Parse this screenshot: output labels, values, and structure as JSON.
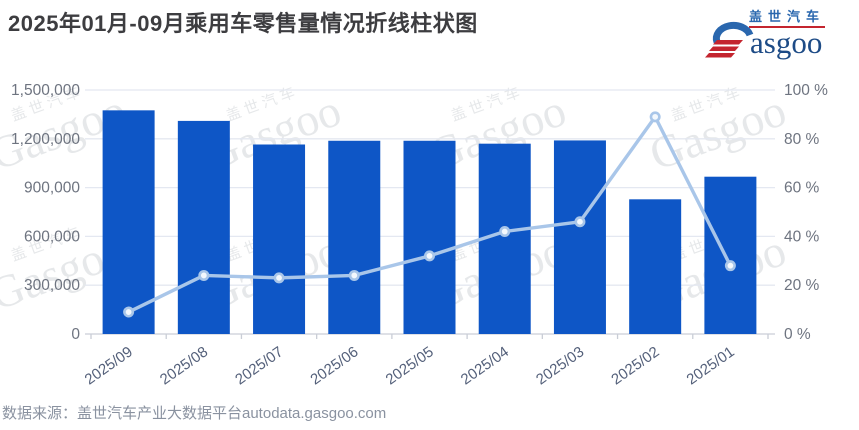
{
  "title": "2025年01月-09月乘用车零售量情况折线柱状图",
  "logo": {
    "cn": "盖世汽车",
    "en": "Gasgoo"
  },
  "watermark": {
    "cn": "盖世汽车",
    "en": "Gasgoo"
  },
  "footer": {
    "source": "数据来源：盖世汽车产业大数据平台autodata.gasgoo.com"
  },
  "chart_data": {
    "type": "bar+line",
    "title": "2025年01月-09月乘用车零售量情况折线柱状图",
    "categories": [
      "2025/09",
      "2025/08",
      "2025/07",
      "2025/06",
      "2025/05",
      "2025/04",
      "2025/03",
      "2025/02",
      "2025/01"
    ],
    "series": [
      {
        "name": "bar",
        "type": "bar",
        "yaxis": "left",
        "values": [
          1375000,
          1310000,
          1165000,
          1188000,
          1188000,
          1170000,
          1190000,
          828000,
          967000
        ]
      },
      {
        "name": "line",
        "type": "line",
        "yaxis": "right",
        "values": [
          9,
          24,
          23,
          24,
          32,
          42,
          46,
          89,
          28
        ]
      }
    ],
    "left_axis": {
      "min": 0,
      "max": 1500000,
      "tick_step": 300000,
      "tick_labels": [
        "1,500,000",
        "1,200,000",
        "900,000",
        "600,000",
        "300,000",
        "0"
      ]
    },
    "right_axis": {
      "min": 0,
      "max": 100,
      "tick_step": 20,
      "tick_labels": [
        "100 %",
        "80 %",
        "60 %",
        "40 %",
        "20 %",
        "0 %"
      ]
    },
    "x_axis": {
      "label_rotation_deg": -35
    },
    "grid": true,
    "legend": "none",
    "colors": {
      "bar": "#0e56c6",
      "line": "#a9c6e9",
      "marker_fill": "#f3f8fd",
      "gridline": "#e4e8f1",
      "axis_line": "#c9cdd6",
      "y_tick_label": "#6e7480",
      "x_tick_label": "#54607a",
      "title": "#3d3d40",
      "source_text": "#8a92a0",
      "logo_navy": "#1d4b86",
      "logo_blue": "#2a67ae",
      "logo_red": "#c4252f"
    }
  }
}
